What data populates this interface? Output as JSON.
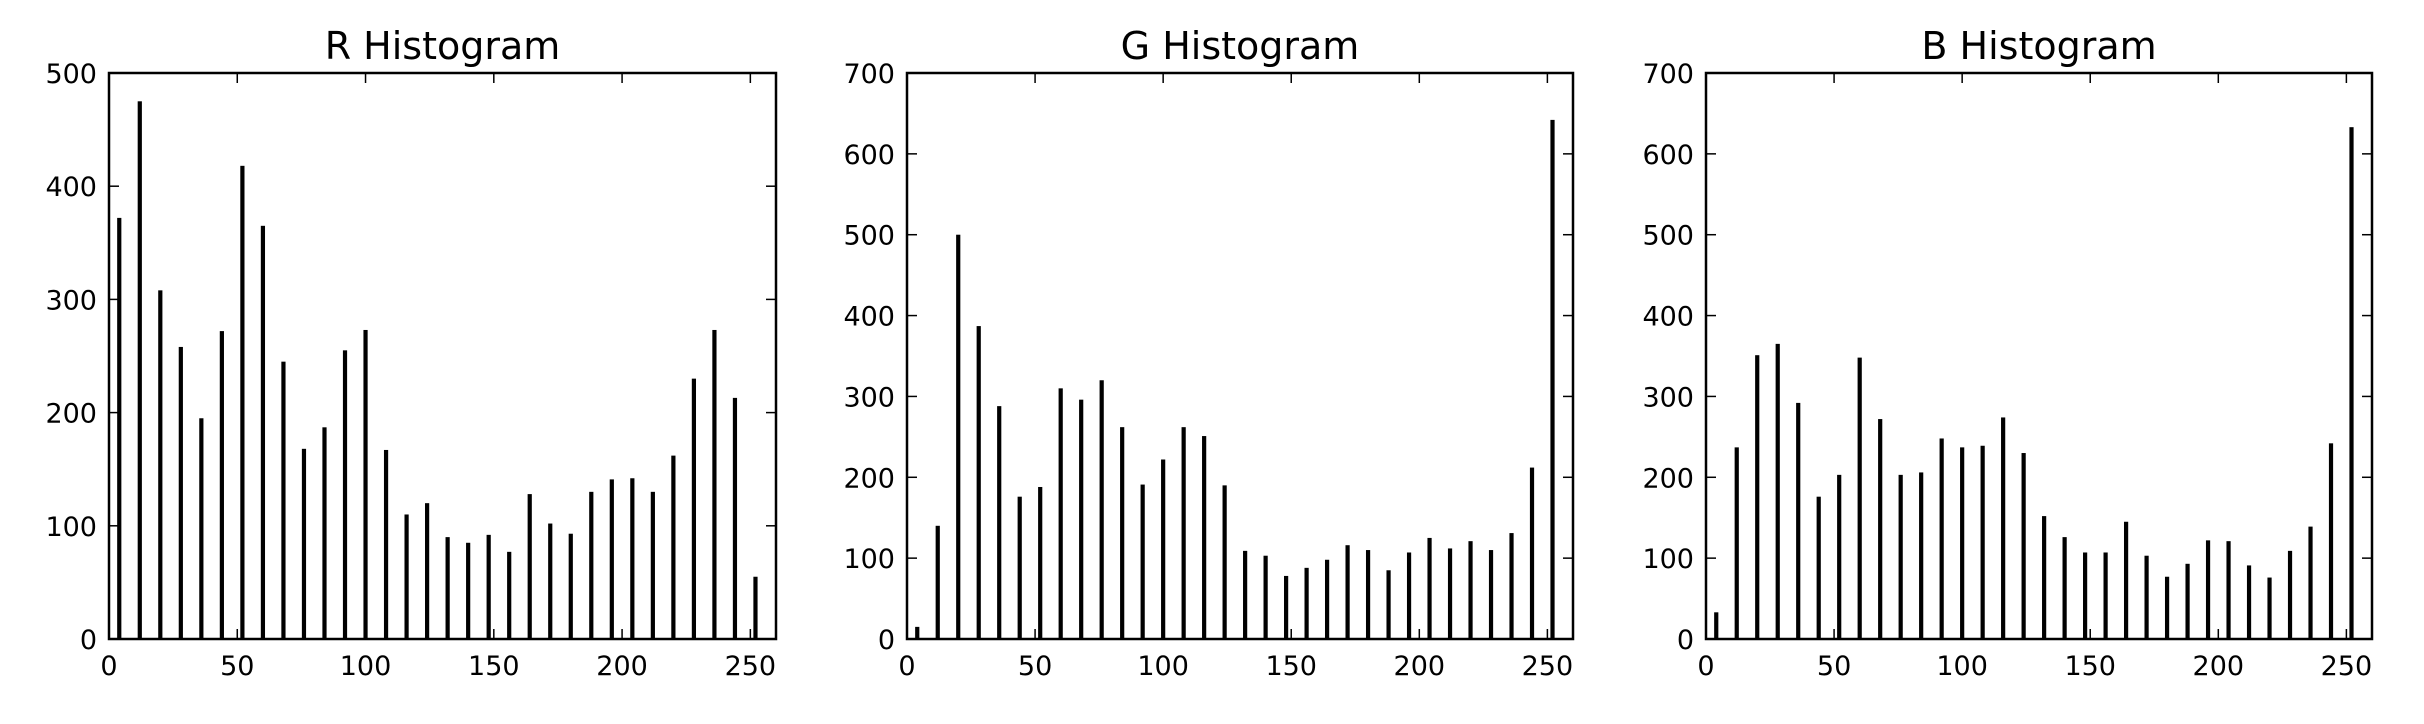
{
  "chart_data": [
    {
      "type": "bar",
      "title": "R Histogram",
      "xlabel": "",
      "ylabel": "",
      "xlim": [
        0,
        260
      ],
      "ylim": [
        0,
        500
      ],
      "xticks": [
        0,
        50,
        100,
        150,
        200,
        250
      ],
      "yticks": [
        0,
        100,
        200,
        300,
        400,
        500
      ],
      "x": [
        4,
        12,
        20,
        28,
        36,
        44,
        52,
        60,
        68,
        76,
        84,
        92,
        100,
        108,
        116,
        124,
        132,
        140,
        148,
        156,
        164,
        172,
        180,
        188,
        196,
        204,
        212,
        220,
        228,
        236,
        244,
        252
      ],
      "values": [
        372,
        475,
        308,
        258,
        195,
        272,
        418,
        365,
        245,
        168,
        187,
        255,
        273,
        167,
        110,
        120,
        90,
        85,
        92,
        77,
        128,
        102,
        93,
        130,
        141,
        142,
        130,
        162,
        230,
        273,
        213,
        55
      ],
      "grid": false,
      "legend": "none"
    },
    {
      "type": "bar",
      "title": "G Histogram",
      "xlabel": "",
      "ylabel": "",
      "xlim": [
        0,
        260
      ],
      "ylim": [
        0,
        700
      ],
      "xticks": [
        0,
        50,
        100,
        150,
        200,
        250
      ],
      "yticks": [
        0,
        100,
        200,
        300,
        400,
        500,
        600,
        700
      ],
      "x": [
        4,
        12,
        20,
        28,
        36,
        44,
        52,
        60,
        68,
        76,
        84,
        92,
        100,
        108,
        116,
        124,
        132,
        140,
        148,
        156,
        164,
        172,
        180,
        188,
        196,
        204,
        212,
        220,
        228,
        236,
        244,
        252
      ],
      "values": [
        15,
        140,
        500,
        387,
        288,
        176,
        188,
        310,
        296,
        320,
        262,
        191,
        222,
        262,
        251,
        190,
        109,
        103,
        78,
        88,
        98,
        116,
        110,
        85,
        107,
        125,
        112,
        121,
        110,
        131,
        212,
        642
      ],
      "grid": false,
      "legend": "none"
    },
    {
      "type": "bar",
      "title": "B Histogram",
      "xlabel": "",
      "ylabel": "",
      "xlim": [
        0,
        260
      ],
      "ylim": [
        0,
        700
      ],
      "xticks": [
        0,
        50,
        100,
        150,
        200,
        250
      ],
      "yticks": [
        0,
        100,
        200,
        300,
        400,
        500,
        600,
        700
      ],
      "x": [
        4,
        12,
        20,
        28,
        36,
        44,
        52,
        60,
        68,
        76,
        84,
        92,
        100,
        108,
        116,
        124,
        132,
        140,
        148,
        156,
        164,
        172,
        180,
        188,
        196,
        204,
        212,
        220,
        228,
        236,
        244,
        252
      ],
      "values": [
        33,
        237,
        351,
        365,
        292,
        176,
        203,
        348,
        272,
        203,
        206,
        248,
        237,
        239,
        274,
        230,
        152,
        126,
        107,
        107,
        145,
        103,
        77,
        93,
        122,
        121,
        91,
        76,
        109,
        139,
        242,
        633
      ],
      "grid": false,
      "legend": "none"
    }
  ]
}
